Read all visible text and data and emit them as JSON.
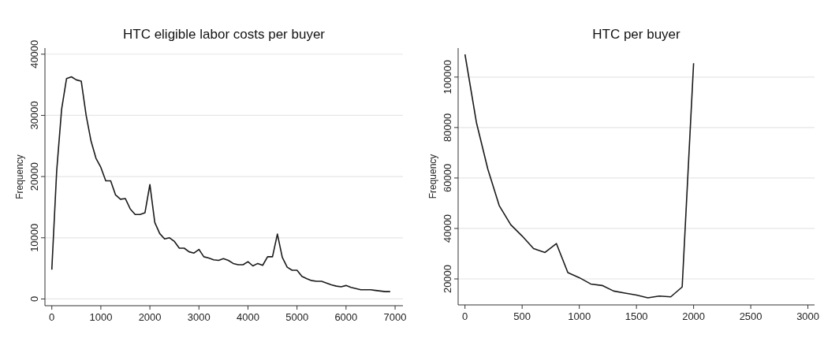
{
  "chart_data": [
    {
      "type": "line",
      "title": "HTC eligible labor costs per buyer",
      "ylabel": "Frequency",
      "grid": "y",
      "xlim": [
        -140,
        7160
      ],
      "ylim": [
        -1100,
        41000
      ],
      "xticks": [
        0,
        1000,
        2000,
        3000,
        4000,
        5000,
        6000,
        7000
      ],
      "yticks": [
        0,
        10000,
        20000,
        30000,
        40000
      ],
      "x": [
        0,
        100,
        200,
        300,
        400,
        500,
        600,
        700,
        800,
        900,
        1000,
        1100,
        1200,
        1300,
        1400,
        1500,
        1600,
        1700,
        1800,
        1900,
        2000,
        2100,
        2200,
        2300,
        2400,
        2500,
        2600,
        2700,
        2800,
        2900,
        3000,
        3100,
        3200,
        3300,
        3400,
        3500,
        3600,
        3700,
        3800,
        3900,
        4000,
        4100,
        4200,
        4300,
        4400,
        4500,
        4600,
        4700,
        4800,
        4900,
        5000,
        5100,
        5200,
        5300,
        5400,
        5500,
        5600,
        5700,
        5800,
        5900,
        6000,
        6100,
        6200,
        6300,
        6400,
        6500,
        6600,
        6700,
        6800,
        6900
      ],
      "series": [
        {
          "color": "#1a1a1a",
          "values": [
            4800,
            21000,
            31000,
            36000,
            36300,
            35800,
            35600,
            30000,
            25800,
            23000,
            21500,
            19300,
            19300,
            17000,
            16300,
            16400,
            14700,
            13800,
            13800,
            14100,
            18700,
            12500,
            10700,
            9800,
            10000,
            9400,
            8300,
            8300,
            7700,
            7500,
            8100,
            6900,
            6700,
            6400,
            6300,
            6600,
            6300,
            5800,
            5600,
            5600,
            6100,
            5400,
            5800,
            5500,
            6900,
            6900,
            10600,
            6800,
            5200,
            4700,
            4700,
            3700,
            3300,
            3000,
            2900,
            2900,
            2600,
            2300,
            2100,
            2000,
            2200,
            1900,
            1700,
            1500,
            1500,
            1500,
            1400,
            1300,
            1200,
            1200
          ]
        }
      ]
    },
    {
      "type": "line",
      "title": "HTC per buyer",
      "ylabel": "Frequency",
      "grid": "y",
      "xlim": [
        -60,
        3058
      ],
      "ylim": [
        9700,
        111500
      ],
      "xticks": [
        0,
        500,
        1000,
        1500,
        2000,
        2500,
        3000
      ],
      "yticks": [
        20000,
        40000,
        60000,
        80000,
        100000
      ],
      "x": [
        0,
        100,
        200,
        300,
        400,
        500,
        600,
        700,
        800,
        900,
        1000,
        1100,
        1200,
        1300,
        1400,
        1500,
        1600,
        1700,
        1800,
        1900,
        2000
      ],
      "series": [
        {
          "color": "#1a1a1a",
          "values": [
            109000,
            82000,
            63500,
            49000,
            41500,
            37000,
            32000,
            30500,
            34000,
            22500,
            20500,
            18000,
            17400,
            15200,
            14400,
            13600,
            12500,
            13200,
            12900,
            16800,
            105500
          ]
        }
      ]
    }
  ]
}
